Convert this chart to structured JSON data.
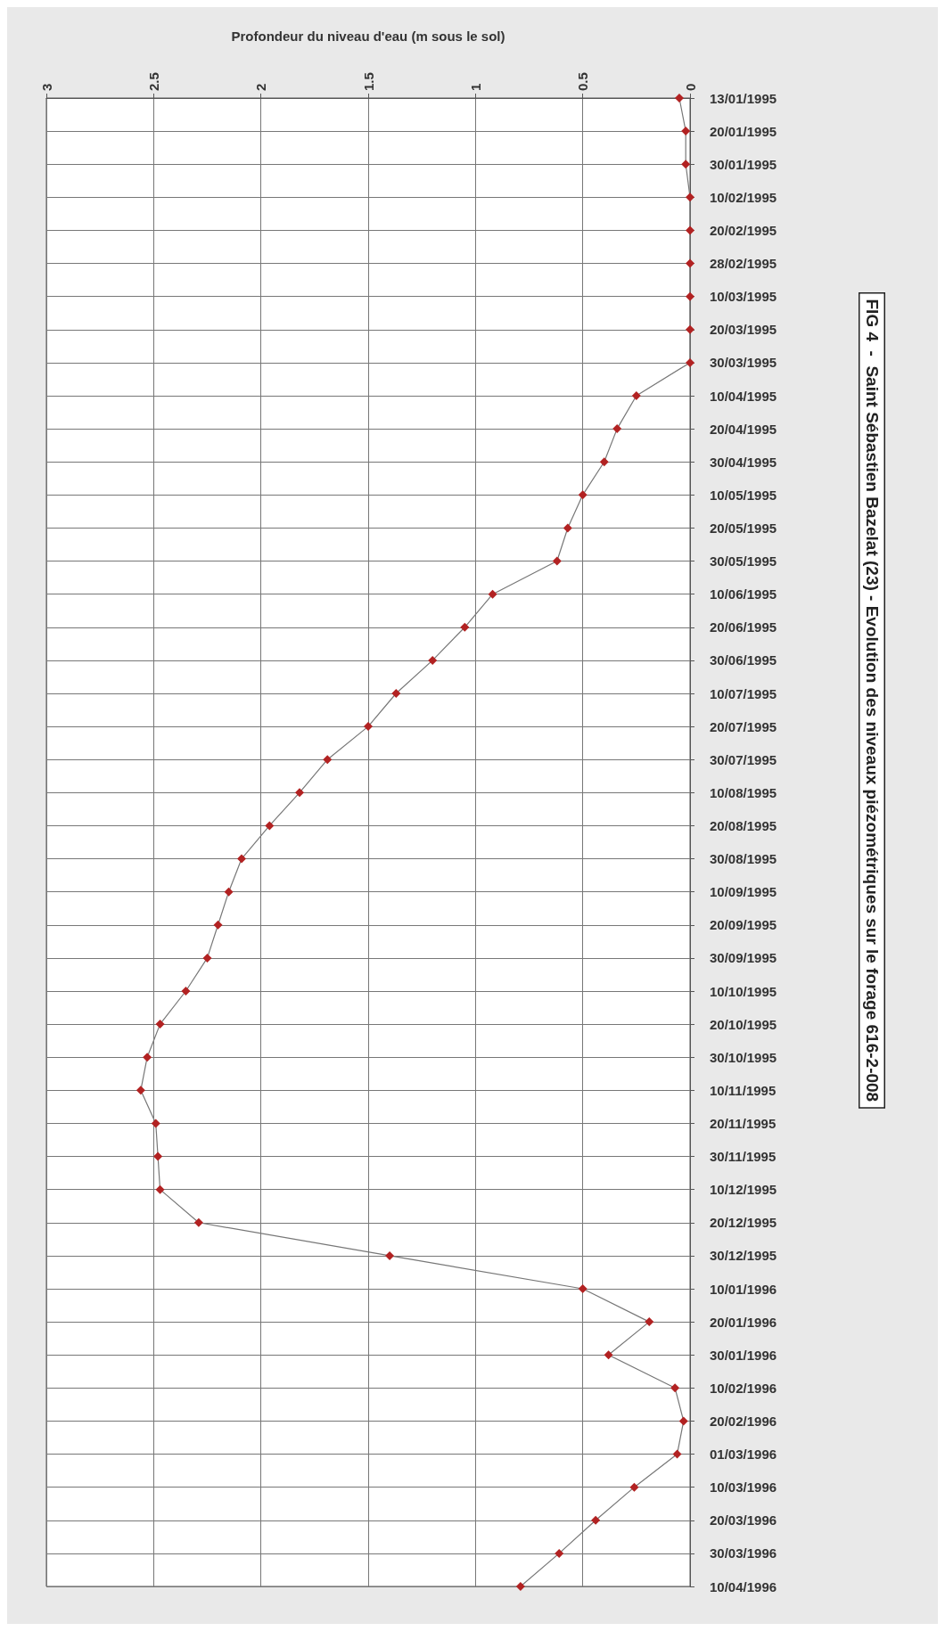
{
  "chart_data": {
    "type": "line",
    "orientation": "horizontal",
    "title": "FIG 4  -  Saint Sébastien Bazelat (23) - Evolution des niveaux piézométriques sur le forage 616-2-008",
    "xlabel": "Profondeur du niveau d'eau (m sous le sol)",
    "categories": [
      "13/01/1995",
      "20/01/1995",
      "30/01/1995",
      "10/02/1995",
      "20/02/1995",
      "28/02/1995",
      "10/03/1995",
      "20/03/1995",
      "30/03/1995",
      "10/04/1995",
      "20/04/1995",
      "30/04/1995",
      "10/05/1995",
      "20/05/1995",
      "30/05/1995",
      "10/06/1995",
      "20/06/1995",
      "30/06/1995",
      "10/07/1995",
      "20/07/1995",
      "30/07/1995",
      "10/08/1995",
      "20/08/1995",
      "30/08/1995",
      "10/09/1995",
      "20/09/1995",
      "30/09/1995",
      "10/10/1995",
      "20/10/1995",
      "30/10/1995",
      "10/11/1995",
      "20/11/1995",
      "30/11/1995",
      "10/12/1995",
      "20/12/1995",
      "30/12/1995",
      "10/01/1996",
      "20/01/1996",
      "30/01/1996",
      "10/02/1996",
      "20/02/1996",
      "01/03/1996",
      "10/03/1996",
      "20/03/1996",
      "30/03/1996",
      "10/04/1996"
    ],
    "series": [
      {
        "color": "#b22222",
        "values": [
          0.05,
          0.02,
          0.02,
          0,
          0,
          0,
          0,
          0,
          0,
          0.25,
          0.34,
          0.4,
          0.5,
          0.57,
          0.62,
          0.92,
          1.05,
          1.2,
          1.37,
          1.5,
          1.69,
          1.82,
          1.96,
          2.09,
          2.15,
          2.2,
          2.25,
          2.35,
          2.47,
          2.53,
          2.56,
          2.49,
          2.48,
          2.47,
          2.29,
          1.4,
          0.5,
          0.19,
          0.38,
          0.07,
          0.03,
          0.06,
          0.26,
          0.44,
          0.61,
          0.79
        ]
      }
    ],
    "xlim": [
      3,
      0
    ],
    "xticks": [
      0,
      0.5,
      1,
      1.5,
      2,
      2.5,
      3
    ],
    "grid": true,
    "marker": "diamond",
    "line_style": "solid"
  }
}
